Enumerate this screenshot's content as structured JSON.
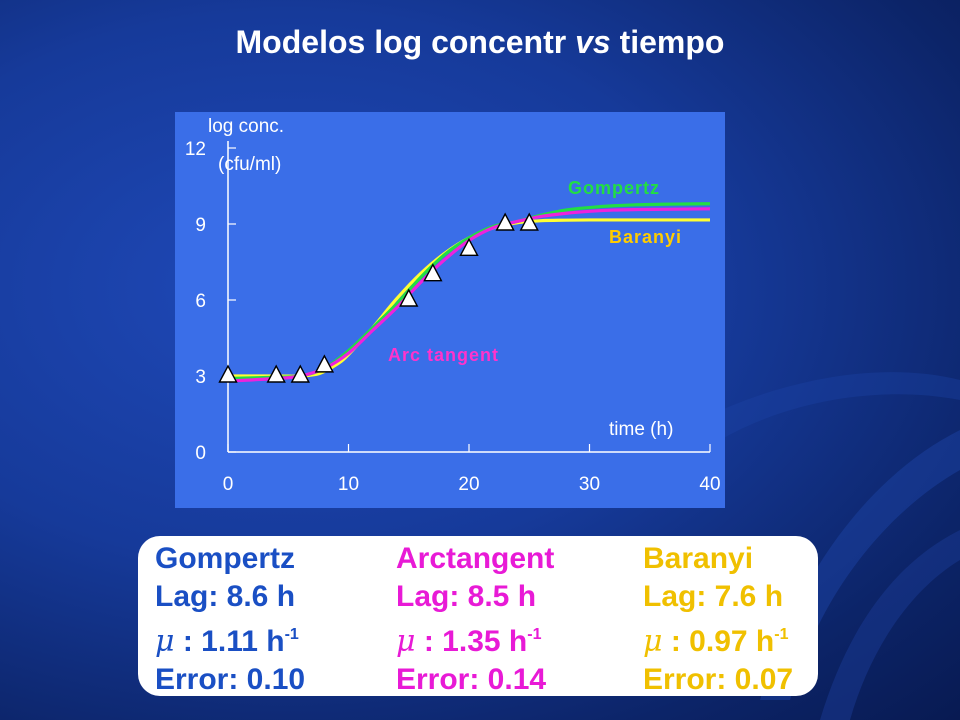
{
  "slide": {
    "title_prefix": "Modelos log concentr ",
    "title_em": "vs",
    "title_suffix": " tiempo"
  },
  "chart_data": {
    "type": "line",
    "ylabel_line1": "log conc.",
    "ylabel_line2": "(cfu/ml)",
    "xlabel": "time (h)",
    "xlim": [
      0,
      40
    ],
    "ylim": [
      0,
      12
    ],
    "xticks": [
      0,
      10,
      20,
      30,
      40
    ],
    "yticks": [
      0,
      3,
      6,
      9,
      12
    ],
    "grid": false,
    "colors": {
      "background": "#3a6ee8",
      "Gompertz": "#22dd44",
      "Arc tangent": "#ee22dd",
      "Baranyi": "#ffff33",
      "label_Gompertz": "#22dd44",
      "label_Arc": "#ff33cc",
      "label_Baranyi": "#ffcc00"
    },
    "series": [
      {
        "name": "Gompertz",
        "x": [
          0,
          4,
          6,
          8,
          10,
          12,
          14,
          16,
          18,
          20,
          22,
          24,
          26,
          28,
          30,
          32,
          34,
          36,
          38,
          40
        ],
        "y": [
          2.9,
          2.95,
          3.0,
          3.3,
          4.0,
          4.9,
          5.85,
          6.9,
          7.8,
          8.45,
          8.9,
          9.1,
          9.35,
          9.55,
          9.65,
          9.72,
          9.76,
          9.78,
          9.79,
          9.8
        ]
      },
      {
        "name": "Arc tangent",
        "x": [
          0,
          4,
          6,
          8,
          10,
          12,
          14,
          16,
          18,
          20,
          22,
          24,
          26,
          28,
          30,
          32,
          34,
          36,
          38,
          40
        ],
        "y": [
          2.8,
          2.9,
          3.0,
          3.3,
          3.9,
          4.8,
          5.7,
          6.7,
          7.6,
          8.35,
          8.85,
          9.1,
          9.3,
          9.42,
          9.5,
          9.55,
          9.57,
          9.58,
          9.59,
          9.6
        ]
      },
      {
        "name": "Baranyi",
        "x": [
          0,
          4,
          6,
          7.6,
          9,
          10,
          12,
          14,
          16,
          18,
          20,
          22,
          24,
          26,
          28,
          30,
          32,
          34,
          36,
          38,
          40
        ],
        "y": [
          3.0,
          3.0,
          3.0,
          3.1,
          3.45,
          3.85,
          4.9,
          6.05,
          7.05,
          7.85,
          8.45,
          8.85,
          9.05,
          9.13,
          9.15,
          9.16,
          9.16,
          9.16,
          9.16,
          9.16,
          9.16
        ]
      }
    ],
    "observations": {
      "x": [
        0,
        4,
        6,
        8,
        15,
        17,
        20,
        23,
        25
      ],
      "y": [
        3.0,
        3.0,
        3.0,
        3.4,
        6.0,
        7.0,
        8.0,
        9.0,
        9.0
      ]
    },
    "annotations": {
      "gompertz": "Gompertz",
      "baranyi": "Baranyi",
      "arctangent": "Arc tangent"
    }
  },
  "panel": {
    "gompertz": {
      "name": "Gompertz",
      "lag": "Lag: 8.6 h",
      "mu_symbol": "μ",
      "mu_sep": " : ",
      "mu_value": "1.11 h",
      "mu_exp": "-1",
      "error": "Error: 0.10"
    },
    "arctangent": {
      "name": "Arctangent",
      "lag": "Lag: 8.5 h",
      "mu_symbol": "μ",
      "mu_sep": " : ",
      "mu_value": "1.35 h",
      "mu_exp": "-1",
      "error": "Error: 0.14"
    },
    "baranyi": {
      "name": "Baranyi",
      "lag": "Lag: 7.6 h",
      "mu_symbol": "μ",
      "mu_sep": " : ",
      "mu_value": "0.97 h",
      "mu_exp": "-1",
      "error": "Error: 0.07"
    }
  }
}
